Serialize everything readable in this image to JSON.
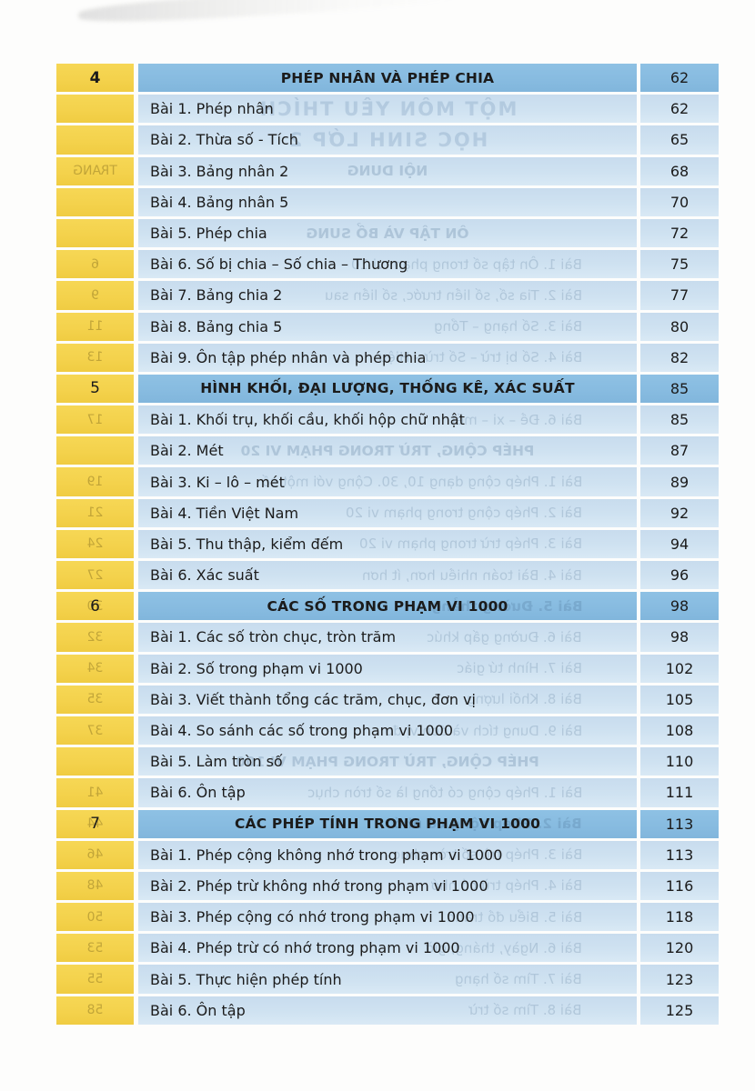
{
  "colors": {
    "paper": "#fdfdfc",
    "chapter_column_yellow": "#f4d24c",
    "chapter_header_blue": "#87bbe0",
    "row_blue": "#cfe2f1",
    "text": "#1b1b1b"
  },
  "toc": {
    "rows": [
      {
        "type": "chapter",
        "num": "4",
        "bold_num": true,
        "title": "PHÉP NHÂN VÀ PHÉP CHIA",
        "page": "62"
      },
      {
        "type": "lesson",
        "title": "Bài 1. Phép nhân",
        "page": "62",
        "ghost": {
          "kind": "big",
          "text": "MỘT MÔN YÊU THÍCH"
        }
      },
      {
        "type": "lesson",
        "title": "Bài 2. Thừa số - Tích",
        "page": "65",
        "ghost": {
          "kind": "big",
          "text": "HỌC SINH LỚP 2"
        }
      },
      {
        "type": "lesson",
        "title": "Bài 3. Bảng nhân 2",
        "page": "68",
        "ghost": {
          "kind": "header",
          "text": "NỘI DUNG"
        },
        "ghost_num": "TRANG"
      },
      {
        "type": "lesson",
        "title": "Bài 4. Bảng nhân 5",
        "page": "70"
      },
      {
        "type": "lesson",
        "title": "Bài 5. Phép chia",
        "page": "72",
        "ghost": {
          "kind": "header",
          "text": "ÔN TẬP VÀ BỔ SUNG"
        }
      },
      {
        "type": "lesson",
        "title": "Bài 6. Số bị chia – Số chia – Thương",
        "page": "75",
        "ghost": {
          "kind": "lesson",
          "text": "Bài 1. Ôn tập số trong phạm vi 10"
        },
        "ghost_num": "6"
      },
      {
        "type": "lesson",
        "title": "Bài 7. Bảng chia 2",
        "page": "77",
        "ghost": {
          "kind": "lesson",
          "text": "Bài 2. Tia số, số liền trước, số liền sau"
        },
        "ghost_num": "9"
      },
      {
        "type": "lesson",
        "title": "Bài 8. Bảng chia 5",
        "page": "80",
        "ghost": {
          "kind": "lesson",
          "text": "Bài 3. Số hạng – Tổng"
        },
        "ghost_num": "11"
      },
      {
        "type": "lesson",
        "title": "Bài 9. Ôn tập phép nhân và phép chia",
        "page": "82",
        "ghost": {
          "kind": "lesson",
          "text": "Bài 4. Số bị trừ – Số trừ – Hiệu"
        },
        "ghost_num": "13"
      },
      {
        "type": "chapter",
        "num": "5",
        "bold_num": false,
        "title": "HÌNH KHỐI, ĐẠI LƯỢNG, THỐNG KÊ, XÁC SUẤT",
        "page": "85"
      },
      {
        "type": "lesson",
        "title": "Bài 1. Khối trụ, khối cầu, khối hộp chữ nhật",
        "page": "85",
        "ghost": {
          "kind": "lesson",
          "text": "Bài 6. Đề – xi – mét"
        },
        "ghost_num": "17"
      },
      {
        "type": "lesson",
        "title": "Bài 2. Mét",
        "page": "87",
        "ghost": {
          "kind": "header",
          "text": "PHÉP CỘNG, TRỪ TRONG PHẠM VI 20"
        }
      },
      {
        "type": "lesson",
        "title": "Bài 3. Ki – lô – mét",
        "page": "89",
        "ghost": {
          "kind": "lesson",
          "text": "Bài 1. Phép cộng dạng 10, 30. Cộng với một số"
        },
        "ghost_num": "19"
      },
      {
        "type": "lesson",
        "title": "Bài 4. Tiền Việt Nam",
        "page": "92",
        "ghost": {
          "kind": "lesson",
          "text": "Bài 2. Phép cộng trong phạm vi 20"
        },
        "ghost_num": "21"
      },
      {
        "type": "lesson",
        "title": "Bài 5. Thu thập, kiểm đếm",
        "page": "94",
        "ghost": {
          "kind": "lesson",
          "text": "Bài 3. Phép trừ trong phạm vi 20"
        },
        "ghost_num": "24"
      },
      {
        "type": "lesson",
        "title": "Bài 6. Xác suất",
        "page": "96",
        "ghost": {
          "kind": "lesson",
          "text": "Bài 4. Bài toán nhiều hơn, ít hơn"
        },
        "ghost_num": "27"
      },
      {
        "type": "chapter",
        "num": "6",
        "bold_num": false,
        "title": "CÁC SỐ TRONG PHẠM VI 1000",
        "page": "98",
        "ghost": {
          "kind": "lesson",
          "text": "Bài 5. Đường thẳng"
        },
        "ghost_num": "30"
      },
      {
        "type": "lesson",
        "title": "Bài 1. Các số tròn chục, tròn trăm",
        "page": "98",
        "ghost": {
          "kind": "lesson",
          "text": "Bài 6. Đường gấp khúc"
        },
        "ghost_num": "32"
      },
      {
        "type": "lesson",
        "title": "Bài 2. Số trong phạm vi 1000",
        "page": "102",
        "ghost": {
          "kind": "lesson",
          "text": "Bài 7. Hình tứ giác"
        },
        "ghost_num": "34"
      },
      {
        "type": "lesson",
        "title": "Bài 3. Viết thành tổng các trăm, chục, đơn vị",
        "page": "105",
        "ghost": {
          "kind": "lesson",
          "text": "Bài 8. Khối lượng"
        },
        "ghost_num": "35"
      },
      {
        "type": "lesson",
        "title": "Bài 4. So sánh các số trong phạm vi 1000",
        "page": "108",
        "ghost": {
          "kind": "lesson",
          "text": "Bài 9. Dung tích và đơn vị đo"
        },
        "ghost_num": "37"
      },
      {
        "type": "lesson",
        "title": "Bài 5. Làm tròn số",
        "page": "110",
        "ghost": {
          "kind": "header",
          "text": "PHÉP CỘNG, TRỪ TRONG PHẠM VI 100"
        }
      },
      {
        "type": "lesson",
        "title": "Bài 6. Ôn tập",
        "page": "111",
        "ghost": {
          "kind": "lesson",
          "text": "Bài 1. Phép cộng có tổng là số tròn chục"
        },
        "ghost_num": "41"
      },
      {
        "type": "chapter",
        "num": "7",
        "bold_num": false,
        "title": "CÁC PHÉP TÍNH TRONG PHẠM VI 1000",
        "page": "113",
        "ghost": {
          "kind": "lesson",
          "text": "Bài 2. Phép cộng có nhớ"
        },
        "ghost_num": "44"
      },
      {
        "type": "lesson",
        "title": "Bài 1. Phép cộng không nhớ trong phạm vi 1000",
        "page": "113",
        "ghost": {
          "kind": "lesson",
          "text": "Bài 3. Phép trừ số tròn chục"
        },
        "ghost_num": "46"
      },
      {
        "type": "lesson",
        "title": "Bài 2. Phép trừ không nhớ trong phạm vi 1000",
        "page": "116",
        "ghost": {
          "kind": "lesson",
          "text": "Bài 4. Phép trừ có nhớ"
        },
        "ghost_num": "48"
      },
      {
        "type": "lesson",
        "title": "Bài 3. Phép cộng có nhớ trong phạm vi 1000",
        "page": "118",
        "ghost": {
          "kind": "lesson",
          "text": "Bài 5. Biểu đồ tranh"
        },
        "ghost_num": "50"
      },
      {
        "type": "lesson",
        "title": "Bài 4. Phép trừ có nhớ trong phạm vi 1000",
        "page": "120",
        "ghost": {
          "kind": "lesson",
          "text": "Bài 6. Ngày, tháng, giờ"
        },
        "ghost_num": "53"
      },
      {
        "type": "lesson",
        "title": "Bài 5. Thực hiện phép tính",
        "page": "123",
        "ghost": {
          "kind": "lesson",
          "text": "Bài 7. Tìm số hạng"
        },
        "ghost_num": "55"
      },
      {
        "type": "lesson",
        "title": "Bài 6. Ôn tập",
        "page": "125",
        "ghost": {
          "kind": "lesson",
          "text": "Bài 8. Tìm số trừ"
        },
        "ghost_num": "58"
      }
    ]
  }
}
